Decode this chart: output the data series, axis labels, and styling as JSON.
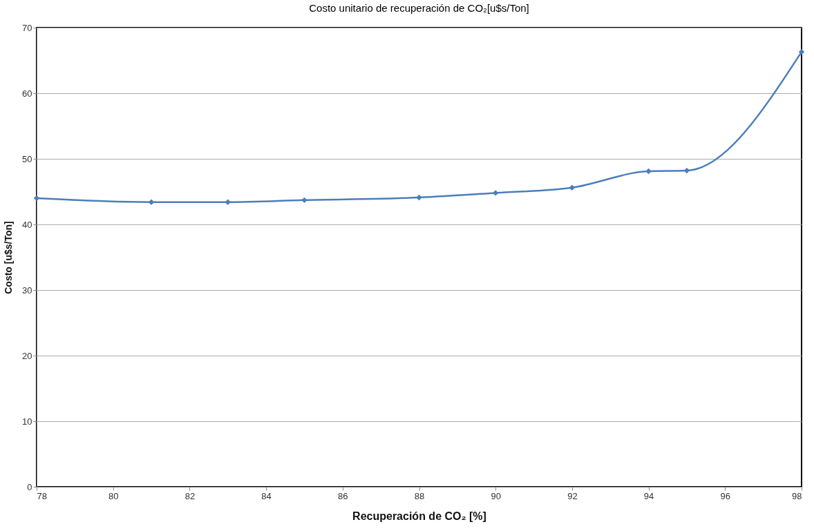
{
  "chart_data": {
    "type": "line",
    "title": "Costo unitario de recuperación de CO₂[u$s/Ton]",
    "xlabel": "Recuperación de CO₂ [%]",
    "ylabel": "Costo [u$s/Ton]",
    "x": [
      78,
      81,
      83,
      85,
      88,
      90,
      92,
      94,
      95,
      98
    ],
    "series": [
      {
        "color": "#4a7ebb",
        "values": [
          44.0,
          43.4,
          43.4,
          43.7,
          44.1,
          44.8,
          45.6,
          48.1,
          48.2,
          66.3
        ]
      }
    ],
    "xlim": [
      78,
      98
    ],
    "xticks": [
      78,
      80,
      82,
      84,
      86,
      88,
      90,
      92,
      94,
      96,
      98
    ],
    "ylim": [
      0,
      70
    ],
    "yticks": [
      0,
      10,
      20,
      30,
      40,
      50,
      60,
      70
    ],
    "grid": "y",
    "marker": "diamond",
    "line_style": "solid"
  }
}
